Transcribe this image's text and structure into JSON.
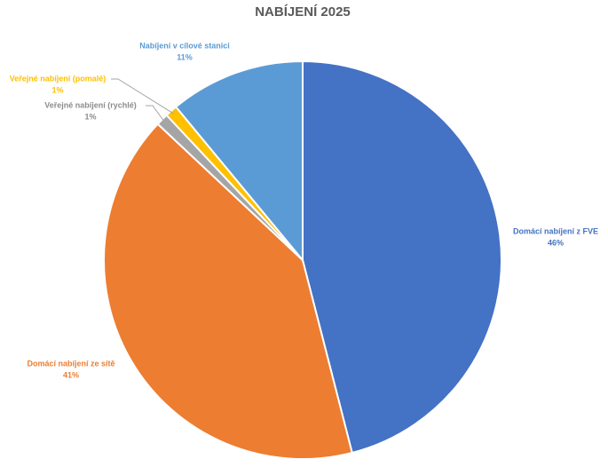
{
  "chart_data": {
    "type": "pie",
    "title": "NABÍJENÍ 2025",
    "categories": [
      "Domácí nabíjení z FVE",
      "Domácí nabíjení ze sítě",
      "Veřejné nabíjení (rychlé)",
      "Veřejné nabíjení (pomalé)",
      "Nabíjení v cílové stanici"
    ],
    "values": [
      46,
      41,
      1,
      1,
      11
    ],
    "value_labels": [
      "46%",
      "41%",
      "1%",
      "1%",
      "11%"
    ],
    "colors": [
      "#4472c4",
      "#ed7d31",
      "#a5a5a5",
      "#ffc000",
      "#5b9bd5"
    ]
  }
}
